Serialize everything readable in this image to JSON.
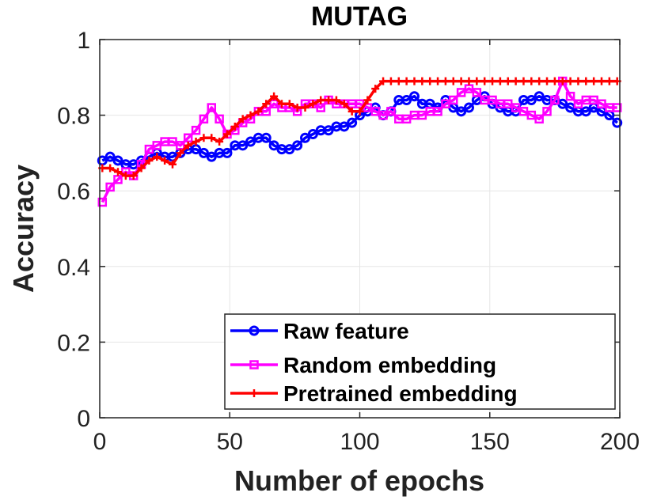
{
  "chart_data": {
    "type": "line",
    "title": "MUTAG",
    "xlabel": "Number of epochs",
    "ylabel": "Accuracy",
    "xlim": [
      0,
      200
    ],
    "ylim": [
      0,
      1
    ],
    "xticks": [
      0,
      50,
      100,
      150,
      200
    ],
    "yticks": [
      0,
      0.2,
      0.4,
      0.6,
      0.8,
      1
    ],
    "xtick_labels": [
      "0",
      "50",
      "100",
      "150",
      "200"
    ],
    "ytick_labels": [
      "0",
      "0.2",
      "0.4",
      "0.6",
      "0.8",
      "1"
    ],
    "grid": true,
    "legend_position": "bottom-right",
    "series": [
      {
        "name": "Raw feature",
        "color": "#0000ff",
        "marker": "circle",
        "x": [
          1,
          4,
          7,
          10,
          13,
          16,
          19,
          22,
          25,
          28,
          31,
          34,
          37,
          40,
          43,
          46,
          49,
          52,
          55,
          58,
          61,
          64,
          67,
          70,
          73,
          76,
          79,
          82,
          85,
          88,
          91,
          94,
          97,
          100,
          103,
          106,
          109,
          112,
          115,
          118,
          121,
          124,
          127,
          130,
          133,
          136,
          139,
          142,
          145,
          148,
          151,
          154,
          157,
          160,
          163,
          166,
          169,
          172,
          175,
          178,
          181,
          184,
          187,
          190,
          193,
          196,
          199
        ],
        "values": [
          0.68,
          0.69,
          0.68,
          0.67,
          0.67,
          0.68,
          0.69,
          0.7,
          0.69,
          0.69,
          0.7,
          0.71,
          0.71,
          0.7,
          0.69,
          0.7,
          0.7,
          0.72,
          0.72,
          0.73,
          0.74,
          0.74,
          0.72,
          0.71,
          0.71,
          0.72,
          0.74,
          0.75,
          0.76,
          0.76,
          0.77,
          0.77,
          0.78,
          0.8,
          0.81,
          0.82,
          0.8,
          0.81,
          0.84,
          0.84,
          0.85,
          0.83,
          0.83,
          0.82,
          0.84,
          0.82,
          0.81,
          0.82,
          0.84,
          0.85,
          0.83,
          0.82,
          0.81,
          0.81,
          0.84,
          0.84,
          0.85,
          0.84,
          0.84,
          0.83,
          0.82,
          0.81,
          0.81,
          0.82,
          0.81,
          0.8,
          0.78
        ]
      },
      {
        "name": "Random embedding",
        "color": "#ff00ff",
        "marker": "square",
        "x": [
          1,
          4,
          7,
          10,
          13,
          16,
          19,
          22,
          25,
          28,
          31,
          34,
          37,
          40,
          43,
          46,
          49,
          52,
          55,
          58,
          61,
          64,
          67,
          70,
          73,
          76,
          79,
          82,
          85,
          88,
          91,
          94,
          97,
          100,
          103,
          106,
          109,
          112,
          115,
          118,
          121,
          124,
          127,
          130,
          133,
          136,
          139,
          142,
          145,
          148,
          151,
          154,
          157,
          160,
          163,
          166,
          169,
          172,
          175,
          178,
          181,
          184,
          187,
          190,
          193,
          196,
          199
        ],
        "values": [
          0.57,
          0.61,
          0.63,
          0.65,
          0.64,
          0.67,
          0.71,
          0.72,
          0.73,
          0.73,
          0.72,
          0.74,
          0.76,
          0.79,
          0.82,
          0.79,
          0.75,
          0.76,
          0.78,
          0.79,
          0.81,
          0.81,
          0.83,
          0.82,
          0.82,
          0.81,
          0.83,
          0.83,
          0.82,
          0.84,
          0.83,
          0.83,
          0.83,
          0.83,
          0.82,
          0.81,
          0.8,
          0.81,
          0.79,
          0.79,
          0.8,
          0.8,
          0.81,
          0.81,
          0.83,
          0.84,
          0.86,
          0.87,
          0.86,
          0.84,
          0.84,
          0.83,
          0.83,
          0.82,
          0.81,
          0.8,
          0.79,
          0.81,
          0.84,
          0.89,
          0.85,
          0.83,
          0.84,
          0.84,
          0.83,
          0.82,
          0.82
        ]
      },
      {
        "name": "Pretrained embedding",
        "color": "#ff0000",
        "marker": "plus",
        "x": [
          1,
          4,
          7,
          10,
          13,
          16,
          19,
          22,
          25,
          28,
          31,
          34,
          37,
          40,
          43,
          46,
          49,
          52,
          55,
          58,
          61,
          64,
          67,
          70,
          73,
          76,
          79,
          82,
          85,
          88,
          91,
          94,
          97,
          100,
          103,
          106,
          109,
          112,
          115,
          118,
          121,
          124,
          127,
          130,
          133,
          136,
          139,
          142,
          145,
          148,
          151,
          154,
          157,
          160,
          163,
          166,
          169,
          172,
          175,
          178,
          181,
          184,
          187,
          190,
          193,
          196,
          199
        ],
        "values": [
          0.66,
          0.66,
          0.65,
          0.64,
          0.64,
          0.66,
          0.68,
          0.69,
          0.68,
          0.67,
          0.7,
          0.72,
          0.73,
          0.74,
          0.74,
          0.73,
          0.75,
          0.77,
          0.79,
          0.8,
          0.81,
          0.83,
          0.85,
          0.83,
          0.83,
          0.82,
          0.82,
          0.83,
          0.84,
          0.84,
          0.84,
          0.83,
          0.81,
          0.81,
          0.84,
          0.87,
          0.89,
          0.89,
          0.89,
          0.89,
          0.89,
          0.89,
          0.89,
          0.89,
          0.89,
          0.89,
          0.89,
          0.89,
          0.89,
          0.89,
          0.89,
          0.89,
          0.89,
          0.89,
          0.89,
          0.89,
          0.89,
          0.89,
          0.89,
          0.89,
          0.89,
          0.89,
          0.89,
          0.89,
          0.89,
          0.89,
          0.89
        ]
      }
    ]
  }
}
